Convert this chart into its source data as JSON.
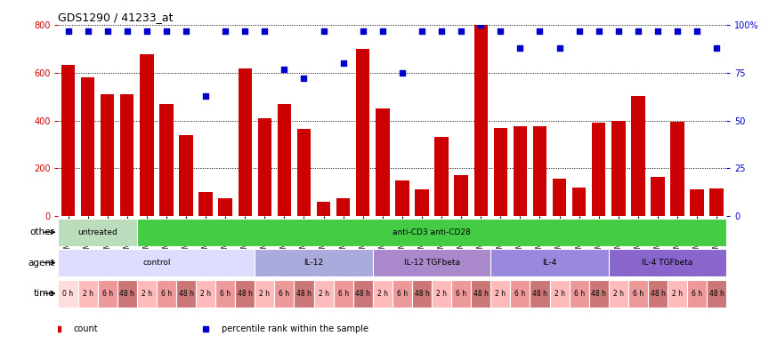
{
  "title": "GDS1290 / 41233_at",
  "samples": [
    "GSM60348",
    "GSM60359",
    "GSM60365",
    "GSM60371",
    "GSM60351",
    "GSM60375",
    "GSM60352",
    "GSM60376",
    "GSM60364",
    "GSM60366",
    "GSM60353",
    "GSM60381",
    "GSM60354",
    "GSM60377",
    "GSM60360",
    "GSM60367",
    "GSM60355",
    "GSM60378",
    "GSM60356",
    "GSM60372",
    "GSM60361",
    "GSM60369",
    "GSM60357",
    "GSM60379",
    "GSM60358",
    "GSM60373",
    "GSM60362",
    "GSM60368",
    "GSM60349",
    "GSM60380",
    "GSM60350",
    "GSM60374",
    "GSM60363",
    "GSM60370"
  ],
  "counts": [
    635,
    580,
    510,
    510,
    680,
    470,
    340,
    100,
    75,
    620,
    410,
    470,
    365,
    60,
    75,
    700,
    450,
    150,
    110,
    330,
    170,
    800,
    370,
    375,
    375,
    155,
    120,
    390,
    400,
    505,
    165,
    395,
    110,
    115
  ],
  "percentiles": [
    97,
    97,
    97,
    97,
    97,
    97,
    97,
    63,
    97,
    97,
    97,
    77,
    72,
    97,
    80,
    97,
    97,
    75,
    97,
    97,
    97,
    100,
    97,
    88,
    97,
    88,
    97,
    97,
    97,
    97,
    97,
    97,
    97,
    88
  ],
  "ylim_left": [
    0,
    800
  ],
  "ylim_right": [
    0,
    100
  ],
  "yticks_left": [
    0,
    200,
    400,
    600,
    800
  ],
  "yticks_right": [
    0,
    25,
    50,
    75,
    100
  ],
  "ytick_right_labels": [
    "0",
    "25",
    "50",
    "75",
    "100%"
  ],
  "bar_color": "#cc0000",
  "dot_color": "#0000cc",
  "other_row": {
    "label": "other",
    "segments": [
      {
        "text": "untreated",
        "start": 0,
        "end": 4,
        "color": "#bbddbb"
      },
      {
        "text": "anti-CD3 anti-CD28",
        "start": 4,
        "end": 34,
        "color": "#44cc44"
      }
    ]
  },
  "agent_row": {
    "label": "agent",
    "segments": [
      {
        "text": "control",
        "start": 0,
        "end": 10,
        "color": "#ddddff"
      },
      {
        "text": "IL-12",
        "start": 10,
        "end": 16,
        "color": "#aaaadd"
      },
      {
        "text": "IL-12 TGFbeta",
        "start": 16,
        "end": 22,
        "color": "#aa88cc"
      },
      {
        "text": "IL-4",
        "start": 22,
        "end": 28,
        "color": "#9988dd"
      },
      {
        "text": "IL-4 TGFbeta",
        "start": 28,
        "end": 34,
        "color": "#8866cc"
      }
    ]
  },
  "time_row": {
    "label": "time",
    "segments": [
      {
        "text": "0 h",
        "start": 0,
        "end": 1,
        "color": "#ffdddd"
      },
      {
        "text": "2 h",
        "start": 1,
        "end": 2,
        "color": "#ffbbbb"
      },
      {
        "text": "6 h",
        "start": 2,
        "end": 3,
        "color": "#ee9999"
      },
      {
        "text": "48 h",
        "start": 3,
        "end": 4,
        "color": "#cc7777"
      },
      {
        "text": "2 h",
        "start": 4,
        "end": 5,
        "color": "#ffbbbb"
      },
      {
        "text": "6 h",
        "start": 5,
        "end": 6,
        "color": "#ee9999"
      },
      {
        "text": "48 h",
        "start": 6,
        "end": 7,
        "color": "#cc7777"
      },
      {
        "text": "2 h",
        "start": 7,
        "end": 8,
        "color": "#ffbbbb"
      },
      {
        "text": "6 h",
        "start": 8,
        "end": 9,
        "color": "#ee9999"
      },
      {
        "text": "48 h",
        "start": 9,
        "end": 10,
        "color": "#cc7777"
      },
      {
        "text": "2 h",
        "start": 10,
        "end": 11,
        "color": "#ffbbbb"
      },
      {
        "text": "6 h",
        "start": 11,
        "end": 12,
        "color": "#ee9999"
      },
      {
        "text": "48 h",
        "start": 12,
        "end": 13,
        "color": "#cc7777"
      },
      {
        "text": "2 h",
        "start": 13,
        "end": 14,
        "color": "#ffbbbb"
      },
      {
        "text": "6 h",
        "start": 14,
        "end": 15,
        "color": "#ee9999"
      },
      {
        "text": "48 h",
        "start": 15,
        "end": 16,
        "color": "#cc7777"
      },
      {
        "text": "2 h",
        "start": 16,
        "end": 17,
        "color": "#ffbbbb"
      },
      {
        "text": "6 h",
        "start": 17,
        "end": 18,
        "color": "#ee9999"
      },
      {
        "text": "48 h",
        "start": 18,
        "end": 19,
        "color": "#cc7777"
      },
      {
        "text": "2 h",
        "start": 19,
        "end": 20,
        "color": "#ffbbbb"
      },
      {
        "text": "6 h",
        "start": 20,
        "end": 21,
        "color": "#ee9999"
      },
      {
        "text": "48 h",
        "start": 21,
        "end": 22,
        "color": "#cc7777"
      },
      {
        "text": "2 h",
        "start": 22,
        "end": 23,
        "color": "#ffbbbb"
      },
      {
        "text": "6 h",
        "start": 23,
        "end": 24,
        "color": "#ee9999"
      },
      {
        "text": "48 h",
        "start": 24,
        "end": 25,
        "color": "#cc7777"
      },
      {
        "text": "2 h",
        "start": 25,
        "end": 26,
        "color": "#ffbbbb"
      },
      {
        "text": "6 h",
        "start": 26,
        "end": 27,
        "color": "#ee9999"
      },
      {
        "text": "48 h",
        "start": 27,
        "end": 28,
        "color": "#cc7777"
      },
      {
        "text": "2 h",
        "start": 28,
        "end": 29,
        "color": "#ffbbbb"
      },
      {
        "text": "6 h",
        "start": 29,
        "end": 30,
        "color": "#ee9999"
      },
      {
        "text": "48 h",
        "start": 30,
        "end": 31,
        "color": "#cc7777"
      },
      {
        "text": "2 h",
        "start": 31,
        "end": 32,
        "color": "#ffbbbb"
      },
      {
        "text": "6 h",
        "start": 32,
        "end": 33,
        "color": "#ee9999"
      },
      {
        "text": "48 h",
        "start": 33,
        "end": 34,
        "color": "#cc7777"
      }
    ]
  },
  "legend": [
    {
      "label": "count",
      "color": "#cc0000"
    },
    {
      "label": "percentile rank within the sample",
      "color": "#0000cc"
    }
  ]
}
